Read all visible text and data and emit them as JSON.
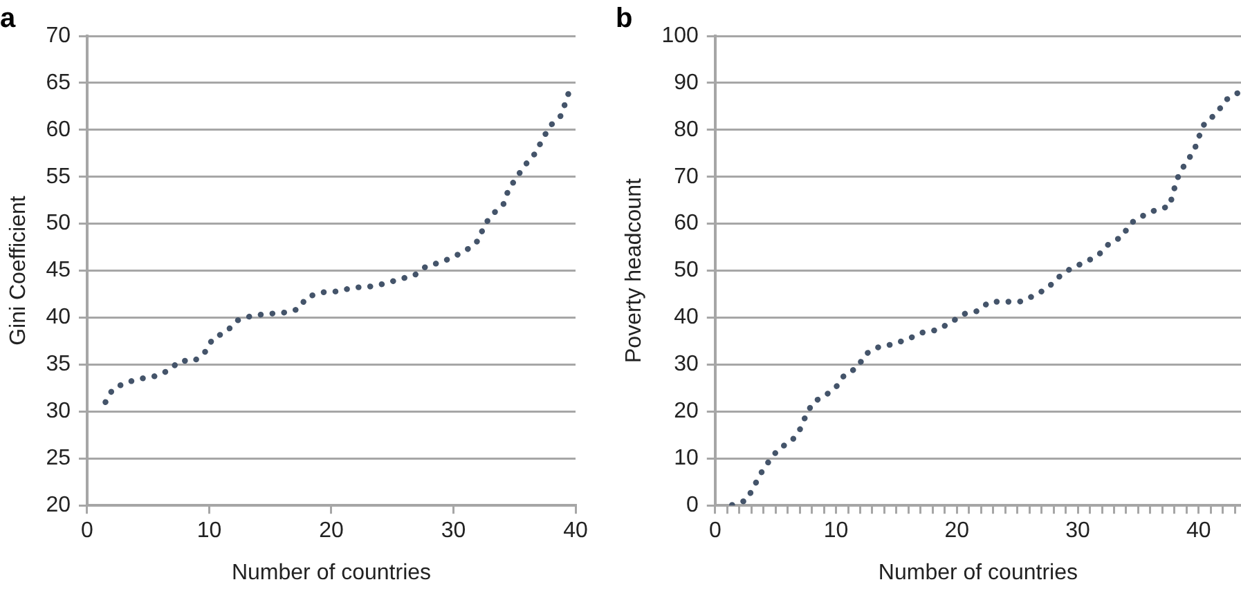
{
  "chart_data": [
    {
      "type": "line",
      "title": "a",
      "xlabel": "Number of countries",
      "ylabel": "Gini Coefficient",
      "xlim": [
        0,
        40
      ],
      "xticks": [
        0,
        10,
        20,
        30,
        40
      ],
      "ylim": [
        20,
        70
      ],
      "yticks": [
        20,
        25,
        30,
        35,
        40,
        45,
        50,
        55,
        60,
        65,
        70
      ],
      "grid": "y",
      "legend": false,
      "marker": "none",
      "line_style": "dotted",
      "series": [
        {
          "color": "#44546a",
          "x": [
            1.5,
            2.1,
            3.2,
            4.4,
            5.7,
            6.7,
            7.6,
            8.8,
            9.7,
            10.3,
            11.4,
            12.3,
            13.5,
            14.7,
            16.0,
            17.3,
            18.0,
            19.3,
            20.5,
            21.8,
            23.1,
            24.3,
            25.6,
            26.8,
            27.8,
            29.0,
            30.2,
            31.3,
            32.1,
            32.5,
            33.2,
            34.1,
            34.5,
            35.2,
            35.9,
            36.7,
            37.3,
            37.9,
            38.8,
            39.2,
            39.6
          ],
          "values": [
            31.0,
            32.4,
            33.1,
            33.5,
            33.8,
            34.4,
            35.4,
            35.4,
            36.4,
            37.8,
            38.5,
            39.7,
            40.2,
            40.4,
            40.5,
            40.9,
            42.2,
            42.7,
            42.8,
            43.2,
            43.3,
            43.6,
            44.1,
            44.5,
            45.5,
            45.9,
            46.6,
            47.4,
            48.3,
            49.8,
            51.0,
            52.1,
            53.6,
            55.0,
            56.3,
            57.5,
            59.0,
            60.4,
            61.5,
            63.0,
            64.6
          ]
        }
      ]
    },
    {
      "type": "line",
      "title": "b",
      "xlabel": "Number of countries",
      "ylabel": "Poverty headcount",
      "xlim": [
        0,
        43.5
      ],
      "xticks": [
        0,
        {
          "value": 1,
          "label": null
        },
        {
          "value": 2,
          "label": null
        },
        {
          "value": 3,
          "label": null
        },
        {
          "value": 4,
          "label": null
        },
        {
          "value": 5,
          "label": null
        },
        {
          "value": 6,
          "label": null
        },
        {
          "value": 7,
          "label": null
        },
        {
          "value": 8,
          "label": null
        },
        {
          "value": 9,
          "label": null
        },
        10,
        {
          "value": 11,
          "label": null
        },
        {
          "value": 12,
          "label": null
        },
        {
          "value": 13,
          "label": null
        },
        {
          "value": 14,
          "label": null
        },
        {
          "value": 15,
          "label": null
        },
        {
          "value": 16,
          "label": null
        },
        {
          "value": 17,
          "label": null
        },
        {
          "value": 18,
          "label": null
        },
        {
          "value": 19,
          "label": null
        },
        20,
        {
          "value": 21,
          "label": null
        },
        {
          "value": 22,
          "label": null
        },
        {
          "value": 23,
          "label": null
        },
        {
          "value": 24,
          "label": null
        },
        {
          "value": 25,
          "label": null
        },
        {
          "value": 26,
          "label": null
        },
        {
          "value": 27,
          "label": null
        },
        {
          "value": 28,
          "label": null
        },
        {
          "value": 29,
          "label": null
        },
        30,
        {
          "value": 31,
          "label": null
        },
        {
          "value": 32,
          "label": null
        },
        {
          "value": 33,
          "label": null
        },
        {
          "value": 34,
          "label": null
        },
        {
          "value": 35,
          "label": null
        },
        {
          "value": 36,
          "label": null
        },
        {
          "value": 37,
          "label": null
        },
        {
          "value": 38,
          "label": null
        },
        {
          "value": 39,
          "label": null
        },
        40,
        {
          "value": 41,
          "label": null
        },
        {
          "value": 42,
          "label": null
        },
        {
          "value": 43,
          "label": null
        }
      ],
      "ylim": [
        0,
        100
      ],
      "yticks": [
        0,
        10,
        20,
        30,
        40,
        50,
        60,
        70,
        80,
        90,
        100
      ],
      "grid": "y",
      "legend": false,
      "marker": "none",
      "line_style": "dotted",
      "series": [
        {
          "color": "#44546a",
          "x": [
            1.4,
            2.6,
            3.2,
            3.8,
            4.5,
            5.3,
            6.3,
            7.0,
            7.5,
            8.1,
            9.1,
            10.0,
            10.7,
            11.8,
            12.4,
            13.5,
            14.8,
            16.0,
            17.1,
            18.4,
            19.5,
            20.6,
            21.7,
            22.7,
            23.9,
            25.2,
            26.4,
            27.5,
            28.4,
            29.5,
            30.6,
            31.7,
            32.6,
            33.7,
            34.3,
            35.4,
            36.5,
            37.6,
            37.9,
            38.3,
            38.9,
            39.6,
            40.0,
            40.5,
            41.5,
            42.2,
            43.2
          ],
          "values": [
            0.1,
            1.1,
            4.0,
            6.9,
            9.6,
            12.2,
            13.6,
            16.1,
            19.1,
            22.0,
            23.4,
            25.2,
            27.8,
            29.4,
            32.2,
            33.7,
            34.4,
            35.5,
            36.8,
            37.4,
            39.0,
            40.8,
            41.4,
            43.4,
            43.4,
            43.4,
            44.7,
            46.3,
            48.6,
            50.6,
            51.8,
            53.3,
            55.8,
            57.3,
            60.0,
            61.7,
            63.0,
            63.7,
            66.8,
            70.0,
            72.9,
            75.4,
            78.4,
            81.5,
            83.5,
            86.3,
            87.8
          ]
        }
      ]
    }
  ]
}
